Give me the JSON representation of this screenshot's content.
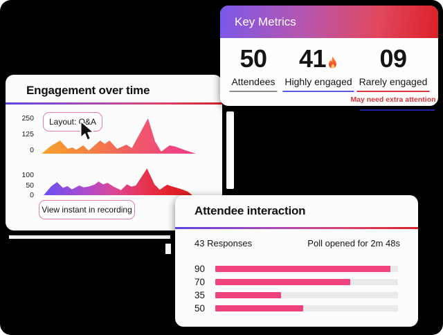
{
  "colors": {
    "background": "#000000",
    "card_bg": "#FCFCFC",
    "divider_gradient": [
      "#5B43E0",
      "#A948B8",
      "#D8436E",
      "#D62027"
    ],
    "header_gradient": [
      "#7B59EA",
      "#B855AC",
      "#E0485E",
      "#DC2127"
    ],
    "chip_border": "#E27E9D",
    "bar_pink": "#F0427C",
    "alert_red": "#D7373F"
  },
  "engagement_card": {
    "title": "Engagement over time",
    "tooltip_label": "Layout: Q&A",
    "button_label": "View instant in recording"
  },
  "key_metrics_card": {
    "title": "Key Metrics",
    "metrics": [
      {
        "value": "50",
        "label": "Attendees",
        "underline_color": "#8E8E8E"
      },
      {
        "value": "41",
        "label": "Highly engaged",
        "underline_color": "#5757E0",
        "flame_icon": "fire-icon"
      },
      {
        "value": "09",
        "label": "Rarely engaged",
        "underline_color": "#D7373F",
        "note": "May need extra attention"
      }
    ]
  },
  "attendee_card": {
    "title": "Attendee interaction",
    "responses": "43 Responses",
    "poll_status": "Poll opened for 2m 48s"
  },
  "chart_data": [
    {
      "type": "area",
      "name": "engagement-upper-series",
      "yticks": [
        "250",
        "125",
        "0"
      ],
      "ylim": [
        0,
        310
      ],
      "grid": false,
      "points": [
        [
          0,
          0
        ],
        [
          0.06,
          55
        ],
        [
          0.12,
          95
        ],
        [
          0.17,
          35
        ],
        [
          0.2,
          45
        ],
        [
          0.225,
          28
        ],
        [
          0.27,
          60
        ],
        [
          0.305,
          22
        ],
        [
          0.38,
          95
        ],
        [
          0.41,
          70
        ],
        [
          0.44,
          95
        ],
        [
          0.49,
          35
        ],
        [
          0.55,
          65
        ],
        [
          0.585,
          40
        ],
        [
          0.69,
          255
        ],
        [
          0.735,
          90
        ],
        [
          0.775,
          15
        ],
        [
          0.83,
          60
        ],
        [
          0.865,
          52
        ],
        [
          0.93,
          25
        ],
        [
          1,
          0
        ]
      ],
      "gradient_stops": [
        [
          0,
          "#F7A32B"
        ],
        [
          35,
          "#F47B46"
        ],
        [
          60,
          "#F15A68"
        ],
        [
          100,
          "#EF3C8C"
        ]
      ]
    },
    {
      "type": "area",
      "name": "engagement-lower-series",
      "yticks": [
        "100",
        "50",
        "0"
      ],
      "ylim": [
        0,
        150
      ],
      "grid": false,
      "points": [
        [
          0,
          0
        ],
        [
          0.05,
          45
        ],
        [
          0.09,
          68
        ],
        [
          0.13,
          38
        ],
        [
          0.16,
          47
        ],
        [
          0.19,
          30
        ],
        [
          0.24,
          50
        ],
        [
          0.27,
          40
        ],
        [
          0.3,
          44
        ],
        [
          0.34,
          54
        ],
        [
          0.37,
          70
        ],
        [
          0.4,
          56
        ],
        [
          0.43,
          64
        ],
        [
          0.47,
          44
        ],
        [
          0.52,
          26
        ],
        [
          0.56,
          56
        ],
        [
          0.59,
          44
        ],
        [
          0.62,
          50
        ],
        [
          0.695,
          138
        ],
        [
          0.745,
          56
        ],
        [
          0.78,
          28
        ],
        [
          0.83,
          54
        ],
        [
          0.86,
          46
        ],
        [
          0.93,
          30
        ],
        [
          0.97,
          18
        ],
        [
          1,
          0
        ]
      ],
      "gradient_stops": [
        [
          0,
          "#6A4FF0"
        ],
        [
          28,
          "#AD4BCD"
        ],
        [
          48,
          "#DD4795"
        ],
        [
          68,
          "#E73350"
        ],
        [
          85,
          "#E2222A"
        ],
        [
          100,
          "#DE2026"
        ]
      ]
    },
    {
      "type": "bar",
      "name": "poll-responses",
      "categories": [
        "90",
        "70",
        "35",
        "50"
      ],
      "values": [
        90,
        70,
        35,
        50
      ],
      "fill_pct": [
        96,
        74,
        36,
        48
      ],
      "bar_color": "#F0427C",
      "track_color": "#EAE8E8",
      "xlim": [
        0,
        100
      ]
    }
  ]
}
